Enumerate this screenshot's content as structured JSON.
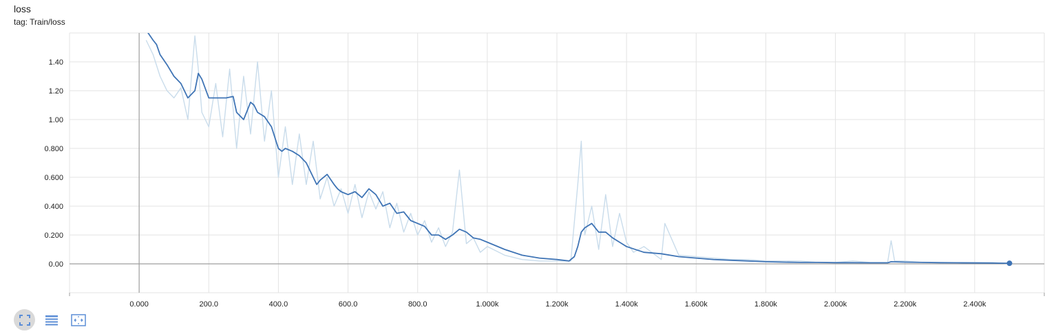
{
  "header": {
    "title": "loss",
    "tag": "tag: Train/loss"
  },
  "colors": {
    "smoothed": "#3f74b5",
    "raw": "#c9dceb",
    "grid": "#e3e3e3",
    "axis": "#9e9e9e",
    "toolbar_icon": "#5b8dd6"
  },
  "toolbar": [
    {
      "name": "fit-domain-button",
      "icon": "expand-icon",
      "active": true
    },
    {
      "name": "toggle-y-log-button",
      "icon": "list-icon",
      "active": false
    },
    {
      "name": "fit-to-data-button",
      "icon": "fit-icon",
      "active": false
    }
  ],
  "chart_data": {
    "type": "line",
    "title": "loss",
    "subtitle": "tag: Train/loss",
    "xlim": [
      -200,
      2600
    ],
    "ylim": [
      -0.2,
      1.6
    ],
    "x_ticks": [
      0,
      200,
      400,
      600,
      800,
      1000,
      1200,
      1400,
      1600,
      1800,
      2000,
      2200,
      2400
    ],
    "x_tick_labels": [
      "0.000",
      "200.0",
      "400.0",
      "600.0",
      "800.0",
      "1.000k",
      "1.200k",
      "1.400k",
      "1.600k",
      "1.800k",
      "2.000k",
      "2.200k",
      "2.400k"
    ],
    "y_ticks": [
      0,
      0.2,
      0.4,
      0.6,
      0.8,
      1.0,
      1.2,
      1.4
    ],
    "y_tick_labels": [
      "0.00",
      "0.200",
      "0.400",
      "0.600",
      "0.800",
      "1.00",
      "1.20",
      "1.40"
    ],
    "grid": true,
    "series": [
      {
        "role": "raw",
        "x": [
          20,
          40,
          60,
          80,
          100,
          120,
          140,
          160,
          170,
          180,
          200,
          220,
          240,
          260,
          280,
          300,
          320,
          340,
          360,
          380,
          400,
          420,
          440,
          460,
          480,
          500,
          520,
          540,
          560,
          580,
          600,
          620,
          640,
          660,
          680,
          700,
          720,
          740,
          760,
          780,
          800,
          820,
          840,
          860,
          880,
          900,
          920,
          940,
          960,
          980,
          1000,
          1050,
          1100,
          1150,
          1200,
          1240,
          1260,
          1270,
          1280,
          1300,
          1320,
          1340,
          1360,
          1380,
          1400,
          1420,
          1450,
          1500,
          1510,
          1550,
          1600,
          1650,
          1700,
          1750,
          1800,
          1850,
          1900,
          1950,
          2000,
          2050,
          2100,
          2150,
          2160,
          2170,
          2200,
          2250,
          2300,
          2350,
          2400,
          2450,
          2500
        ],
        "y": [
          1.55,
          1.45,
          1.3,
          1.2,
          1.15,
          1.22,
          1.0,
          1.58,
          1.35,
          1.05,
          0.95,
          1.25,
          0.88,
          1.35,
          0.8,
          1.3,
          0.9,
          1.4,
          0.85,
          1.2,
          0.6,
          0.95,
          0.55,
          0.9,
          0.55,
          0.85,
          0.45,
          0.6,
          0.4,
          0.52,
          0.35,
          0.55,
          0.32,
          0.5,
          0.38,
          0.5,
          0.25,
          0.42,
          0.22,
          0.35,
          0.2,
          0.3,
          0.15,
          0.25,
          0.12,
          0.22,
          0.65,
          0.14,
          0.18,
          0.08,
          0.12,
          0.06,
          0.03,
          0.02,
          0.02,
          0.02,
          0.55,
          0.85,
          0.2,
          0.4,
          0.1,
          0.48,
          0.12,
          0.35,
          0.15,
          0.08,
          0.12,
          0.03,
          0.28,
          0.06,
          0.05,
          0.04,
          0.03,
          0.03,
          0.02,
          0.02,
          0.02,
          0.01,
          0.01,
          0.02,
          0.01,
          0.01,
          0.16,
          0.02,
          0.02,
          0.01,
          0.01,
          0.01,
          0.01,
          0.01,
          0.0
        ]
      },
      {
        "role": "smoothed",
        "x": [
          20,
          40,
          50,
          60,
          80,
          100,
          120,
          140,
          160,
          170,
          180,
          200,
          220,
          250,
          270,
          280,
          300,
          320,
          330,
          340,
          360,
          380,
          400,
          410,
          420,
          440,
          460,
          480,
          500,
          510,
          520,
          540,
          560,
          570,
          580,
          600,
          620,
          640,
          660,
          680,
          700,
          720,
          740,
          760,
          780,
          800,
          820,
          840,
          860,
          880,
          900,
          920,
          940,
          960,
          980,
          1000,
          1050,
          1100,
          1150,
          1200,
          1235,
          1250,
          1260,
          1270,
          1280,
          1300,
          1320,
          1340,
          1360,
          1380,
          1400,
          1450,
          1500,
          1550,
          1600,
          1650,
          1700,
          1750,
          1800,
          1850,
          1900,
          1950,
          2000,
          2050,
          2100,
          2150,
          2160,
          2200,
          2250,
          2300,
          2350,
          2400,
          2450,
          2500
        ],
        "y": [
          1.62,
          1.55,
          1.52,
          1.45,
          1.38,
          1.3,
          1.25,
          1.15,
          1.2,
          1.32,
          1.28,
          1.15,
          1.15,
          1.15,
          1.16,
          1.05,
          1.0,
          1.12,
          1.1,
          1.05,
          1.02,
          0.95,
          0.8,
          0.78,
          0.8,
          0.78,
          0.75,
          0.7,
          0.6,
          0.55,
          0.58,
          0.62,
          0.55,
          0.52,
          0.5,
          0.48,
          0.5,
          0.46,
          0.52,
          0.48,
          0.4,
          0.42,
          0.35,
          0.36,
          0.3,
          0.28,
          0.26,
          0.2,
          0.2,
          0.17,
          0.2,
          0.24,
          0.22,
          0.18,
          0.17,
          0.15,
          0.1,
          0.06,
          0.04,
          0.03,
          0.02,
          0.05,
          0.12,
          0.22,
          0.25,
          0.28,
          0.22,
          0.22,
          0.18,
          0.15,
          0.12,
          0.08,
          0.07,
          0.05,
          0.04,
          0.03,
          0.025,
          0.02,
          0.015,
          0.012,
          0.01,
          0.01,
          0.008,
          0.008,
          0.007,
          0.007,
          0.015,
          0.012,
          0.01,
          0.008,
          0.007,
          0.006,
          0.005,
          0.004
        ]
      }
    ],
    "last_point": {
      "x": 2500,
      "y": 0.004
    }
  }
}
